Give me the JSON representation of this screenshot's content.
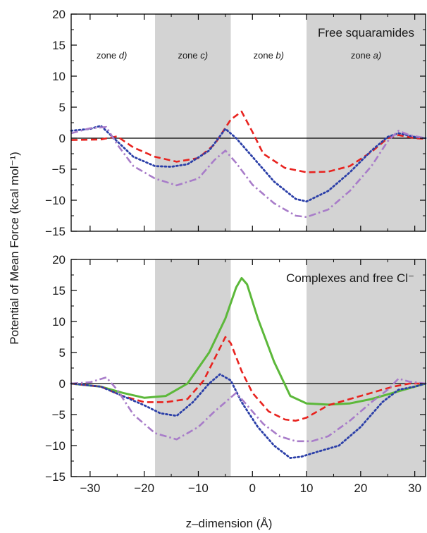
{
  "figure": {
    "ylabel": "Potential of Mean Force (kcal mol⁻¹)",
    "xlabel": "z–dimension (Å)"
  },
  "chart_data": [
    {
      "type": "line",
      "title": "Free squaramides",
      "xlabel": "z–dimension (Å)",
      "ylabel": "Potential of Mean Force (kcal mol⁻¹)",
      "xlim": [
        -33.5,
        32
      ],
      "ylim": [
        -15,
        20
      ],
      "xticks": [
        -30,
        -20,
        -10,
        0,
        10,
        20,
        30
      ],
      "yticks": [
        -15,
        -10,
        -5,
        0,
        5,
        10,
        15,
        20
      ],
      "xtick_labels": [
        "−30",
        "−20",
        "−10",
        "0",
        "10",
        "20",
        "30"
      ],
      "ytick_labels": [
        "−15",
        "−10",
        "−5",
        "0",
        "5",
        "10",
        "15",
        "20"
      ],
      "shaded_x_ranges": [
        [
          -18,
          -4
        ],
        [
          10,
          32
        ]
      ],
      "zero_line": true,
      "grid": false,
      "zone_labels": [
        {
          "prefix": "zone ",
          "letter": "d)",
          "x": -26
        },
        {
          "prefix": "zone ",
          "letter": "c)",
          "x": -11
        },
        {
          "prefix": "zone ",
          "letter": "b)",
          "x": 3
        },
        {
          "prefix": "zone ",
          "letter": "a)",
          "x": 21
        }
      ],
      "series": [
        {
          "color": "#e8231f",
          "dash": "dashed",
          "x": [
            -33.5,
            -28,
            -25,
            -22,
            -18,
            -14,
            -10,
            -7,
            -4,
            -2,
            0,
            2,
            6,
            10,
            14,
            18,
            22,
            25,
            27,
            30,
            32
          ],
          "y": [
            -0.3,
            -0.2,
            0.3,
            -1.5,
            -3.0,
            -3.8,
            -3.2,
            -1.0,
            3.0,
            4.3,
            1.0,
            -2.5,
            -4.8,
            -5.5,
            -5.4,
            -4.5,
            -2.2,
            0.0,
            0.5,
            0.0,
            -0.1
          ]
        },
        {
          "color": "#2b3fa8",
          "dash": "dotted",
          "x": [
            -33.5,
            -30,
            -28,
            -25,
            -22,
            -18,
            -15,
            -12,
            -8,
            -5,
            -3,
            0,
            4,
            8,
            10,
            14,
            18,
            22,
            25,
            27,
            30,
            32
          ],
          "y": [
            1.2,
            1.5,
            2.0,
            -0.5,
            -3.0,
            -4.5,
            -4.6,
            -4.2,
            -2.0,
            1.5,
            0.0,
            -3.0,
            -7.0,
            -9.8,
            -10.2,
            -8.5,
            -5.5,
            -2.0,
            0.2,
            0.8,
            0.2,
            0.0
          ]
        },
        {
          "color": "#a87cc9",
          "dash": "dashdot",
          "x": [
            -33.5,
            -30,
            -27,
            -25,
            -22,
            -18,
            -14,
            -10,
            -7,
            -5,
            -3,
            0,
            4,
            8,
            10,
            14,
            18,
            22,
            25,
            27,
            29,
            32
          ],
          "y": [
            0.8,
            1.6,
            1.8,
            -1.0,
            -4.5,
            -6.5,
            -7.6,
            -6.5,
            -3.5,
            -2.0,
            -4.0,
            -7.5,
            -10.5,
            -12.5,
            -12.7,
            -11.5,
            -8.5,
            -4.5,
            -0.5,
            1.2,
            0.5,
            0.0
          ]
        }
      ]
    },
    {
      "type": "line",
      "title": "Complexes and free Cl⁻",
      "xlabel": "z–dimension (Å)",
      "ylabel": "Potential of Mean Force (kcal mol⁻¹)",
      "xlim": [
        -33.5,
        32
      ],
      "ylim": [
        -15,
        20
      ],
      "xticks": [
        -30,
        -20,
        -10,
        0,
        10,
        20,
        30
      ],
      "yticks": [
        -15,
        -10,
        -5,
        0,
        5,
        10,
        15,
        20
      ],
      "xtick_labels": [
        "−30",
        "−20",
        "−10",
        "0",
        "10",
        "20",
        "30"
      ],
      "ytick_labels": [
        "−15",
        "−10",
        "−5",
        "0",
        "5",
        "10",
        "15",
        "20"
      ],
      "shaded_x_ranges": [
        [
          -18,
          -4
        ],
        [
          10,
          32
        ]
      ],
      "zero_line": true,
      "grid": false,
      "series": [
        {
          "color": "#5cb83a",
          "dash": "solid",
          "x": [
            -33.5,
            -28,
            -24,
            -20,
            -16,
            -12,
            -8,
            -5,
            -3,
            -2,
            -1,
            1,
            4,
            7,
            10,
            14,
            18,
            22,
            26,
            30,
            32
          ],
          "y": [
            0.0,
            -0.5,
            -1.5,
            -2.3,
            -2.0,
            0.0,
            5.0,
            10.5,
            15.5,
            17.0,
            16.0,
            10.5,
            3.5,
            -2.0,
            -3.2,
            -3.4,
            -3.2,
            -2.5,
            -1.5,
            -0.5,
            0.0
          ]
        },
        {
          "color": "#e8231f",
          "dash": "dashed",
          "x": [
            -33.5,
            -28,
            -24,
            -20,
            -16,
            -12,
            -9,
            -7,
            -5,
            -4,
            -2,
            0,
            3,
            6,
            8,
            10,
            14,
            18,
            22,
            26,
            29,
            32
          ],
          "y": [
            0.0,
            -0.5,
            -2.0,
            -3.0,
            -3.0,
            -2.5,
            0.5,
            4.0,
            7.5,
            6.5,
            2.0,
            -1.5,
            -4.5,
            -5.8,
            -6.0,
            -5.5,
            -3.5,
            -2.5,
            -1.5,
            -0.5,
            0.0,
            0.0
          ]
        },
        {
          "color": "#2b3fa8",
          "dash": "dotted",
          "x": [
            -33.5,
            -28,
            -24,
            -20,
            -17,
            -14,
            -11,
            -8,
            -6,
            -4,
            -2,
            1,
            4,
            7,
            9,
            12,
            16,
            20,
            24,
            27,
            30,
            32
          ],
          "y": [
            0.0,
            -0.5,
            -2.0,
            -3.5,
            -4.8,
            -5.2,
            -3.0,
            0.0,
            1.5,
            0.5,
            -3.0,
            -7.0,
            -10.0,
            -12.0,
            -11.8,
            -11.0,
            -10.0,
            -7.0,
            -3.0,
            -1.0,
            -0.5,
            0.0
          ]
        },
        {
          "color": "#a87cc9",
          "dash": "dashdot",
          "x": [
            -33.5,
            -30,
            -27,
            -25,
            -22,
            -18,
            -14,
            -10,
            -7,
            -5,
            -3,
            -1,
            2,
            5,
            8,
            11,
            14,
            18,
            22,
            25,
            27,
            29,
            32
          ],
          "y": [
            0.0,
            0.2,
            1.0,
            -1.0,
            -5.0,
            -8.0,
            -9.0,
            -7.0,
            -4.5,
            -3.0,
            -1.5,
            -3.5,
            -6.5,
            -8.5,
            -9.3,
            -9.3,
            -8.5,
            -6.0,
            -3.0,
            -1.0,
            0.8,
            0.3,
            0.0
          ]
        }
      ]
    }
  ]
}
